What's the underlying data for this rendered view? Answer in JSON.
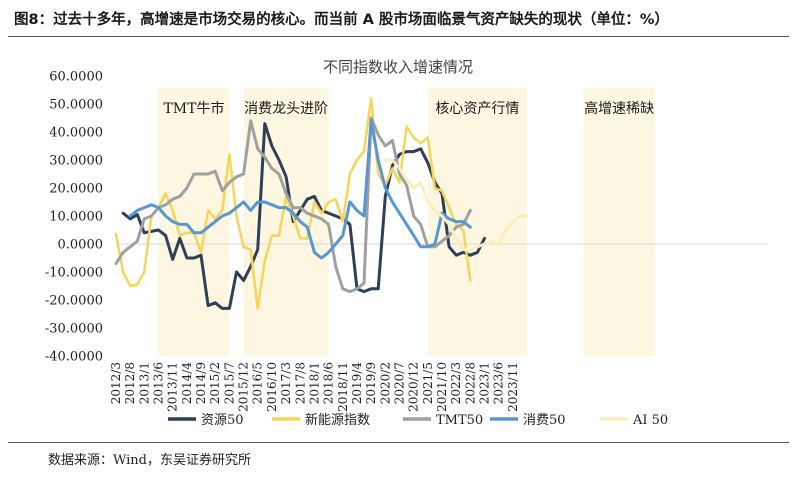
{
  "figure_title": "图8：过去十多年，高增速是市场交易的核心。而当前 A 股市场面临景气资产缺失的现状（单位：%）",
  "source": "数据来源：Wind，东吴证券研究所",
  "chart_data": {
    "type": "line",
    "title": "不同指数收入增速情况",
    "xlabel": "",
    "ylabel": "",
    "ylim": [
      -40,
      60
    ],
    "yticks": [
      60,
      50,
      40,
      30,
      20,
      10,
      0,
      -10,
      -20,
      -30,
      -40
    ],
    "ytick_labels": [
      "60.0000",
      "50.0000",
      "40.0000",
      "30.0000",
      "20.0000",
      "10.0000",
      "0.0000",
      "-10.0000",
      "-20.0000",
      "-30.0000",
      "-40.0000"
    ],
    "x_range": [
      0,
      46
    ],
    "xticks": [
      {
        "label": "2012/3",
        "x": 0
      },
      {
        "label": "2012/8",
        "x": 1
      },
      {
        "label": "2013/1",
        "x": 2
      },
      {
        "label": "2013/6",
        "x": 3
      },
      {
        "label": "2013/11",
        "x": 4
      },
      {
        "label": "2014/4",
        "x": 5
      },
      {
        "label": "2014/9",
        "x": 6
      },
      {
        "label": "2015/2",
        "x": 7
      },
      {
        "label": "2015/7",
        "x": 8
      },
      {
        "label": "2015/12",
        "x": 9
      },
      {
        "label": "2016/5",
        "x": 10
      },
      {
        "label": "2016/10",
        "x": 11
      },
      {
        "label": "2017/3",
        "x": 12
      },
      {
        "label": "2017/8",
        "x": 13
      },
      {
        "label": "2018/1",
        "x": 14
      },
      {
        "label": "2018/6",
        "x": 15
      },
      {
        "label": "2018/11",
        "x": 16
      },
      {
        "label": "2019/4",
        "x": 17
      },
      {
        "label": "2019/9",
        "x": 18
      },
      {
        "label": "2020/2",
        "x": 19
      },
      {
        "label": "2020/7",
        "x": 20
      },
      {
        "label": "2020/12",
        "x": 21
      },
      {
        "label": "2021/5",
        "x": 22
      },
      {
        "label": "2021/10",
        "x": 23
      },
      {
        "label": "2022/3",
        "x": 24
      },
      {
        "label": "2022/8",
        "x": 25
      },
      {
        "label": "2023/1",
        "x": 26
      },
      {
        "label": "2023/6",
        "x": 27
      },
      {
        "label": "2023/11",
        "x": 28
      }
    ],
    "grid": false,
    "legend_position": "bottom",
    "regions": [
      {
        "label": "TMT牛市",
        "x0": 3,
        "x1": 8
      },
      {
        "label": "消费龙头进阶",
        "x0": 9,
        "x1": 15
      },
      {
        "label": "核心资产行情",
        "x0": 22,
        "x1": 29
      },
      {
        "label": "高增速稀缺",
        "x0": 33,
        "x1": 38
      }
    ],
    "series": [
      {
        "name": "资源50",
        "color": "#2f3f57",
        "width": 3,
        "points": [
          [
            0.5,
            11
          ],
          [
            1,
            9
          ],
          [
            1.5,
            10.5
          ],
          [
            2,
            4
          ],
          [
            2.5,
            4.5
          ],
          [
            3,
            5
          ],
          [
            3.5,
            3
          ],
          [
            4,
            -5.5
          ],
          [
            4.5,
            2
          ],
          [
            5,
            -5
          ],
          [
            5.5,
            -5
          ],
          [
            6,
            -4
          ],
          [
            6.5,
            -22
          ],
          [
            7,
            -21
          ],
          [
            7.5,
            -23
          ],
          [
            8,
            -23
          ],
          [
            8.5,
            -10
          ],
          [
            9,
            -13
          ],
          [
            9.5,
            -8
          ],
          [
            10,
            -2
          ],
          [
            10.5,
            43
          ],
          [
            11,
            35
          ],
          [
            11.5,
            30
          ],
          [
            12,
            24
          ],
          [
            12.5,
            8
          ],
          [
            13,
            12
          ],
          [
            13.5,
            16
          ],
          [
            14,
            17
          ],
          [
            14.5,
            12
          ],
          [
            15,
            11
          ],
          [
            15.5,
            10
          ],
          [
            16,
            9
          ],
          [
            16.5,
            7
          ],
          [
            17,
            -16
          ],
          [
            17.5,
            -17
          ],
          [
            18,
            -16
          ],
          [
            18.5,
            -16
          ],
          [
            19,
            17
          ],
          [
            19.5,
            28
          ],
          [
            20,
            32
          ],
          [
            20.5,
            33
          ],
          [
            21,
            33
          ],
          [
            21.5,
            34
          ],
          [
            22,
            29
          ],
          [
            22.5,
            22
          ],
          [
            23,
            18
          ],
          [
            23.5,
            -1
          ],
          [
            24,
            -4
          ],
          [
            24.5,
            -3
          ],
          [
            25,
            -4
          ],
          [
            25.5,
            -3
          ],
          [
            26,
            2
          ]
        ]
      },
      {
        "name": "新能源指数",
        "color": "#f5d55a",
        "width": 2.5,
        "points": [
          [
            0,
            3.5
          ],
          [
            0.5,
            -10
          ],
          [
            1,
            -15
          ],
          [
            1.5,
            -14.5
          ],
          [
            2,
            -10
          ],
          [
            2.5,
            10
          ],
          [
            3,
            13
          ],
          [
            3.5,
            18
          ],
          [
            4,
            12
          ],
          [
            4.5,
            3
          ],
          [
            5,
            4
          ],
          [
            5.5,
            4
          ],
          [
            6,
            -3
          ],
          [
            6.5,
            12
          ],
          [
            7,
            9
          ],
          [
            7.5,
            12
          ],
          [
            8,
            32
          ],
          [
            8.5,
            10
          ],
          [
            9,
            -1
          ],
          [
            9.5,
            -2
          ],
          [
            10,
            -23
          ],
          [
            10.5,
            -6
          ],
          [
            11,
            3
          ],
          [
            11.5,
            3
          ],
          [
            12,
            17
          ],
          [
            12.5,
            10
          ],
          [
            13,
            2
          ],
          [
            13.5,
            2
          ],
          [
            14,
            15
          ],
          [
            14.5,
            11
          ],
          [
            15,
            15
          ],
          [
            15.5,
            16
          ],
          [
            16,
            8
          ],
          [
            16.5,
            25
          ],
          [
            17,
            30
          ],
          [
            17.5,
            33
          ],
          [
            18,
            52
          ],
          [
            18.5,
            25
          ],
          [
            19,
            21
          ],
          [
            19.5,
            27
          ],
          [
            20,
            22
          ],
          [
            20.5,
            42
          ],
          [
            21,
            38
          ],
          [
            21.5,
            36
          ],
          [
            22,
            38
          ],
          [
            22.5,
            20
          ],
          [
            23,
            19
          ],
          [
            23.5,
            13
          ],
          [
            24,
            7
          ],
          [
            24.5,
            5
          ],
          [
            25,
            -13
          ]
        ]
      },
      {
        "name": "TMT50",
        "color": "#9fa0a0",
        "width": 3,
        "points": [
          [
            0,
            -7
          ],
          [
            0.5,
            -3
          ],
          [
            1,
            -1
          ],
          [
            1.5,
            1
          ],
          [
            2,
            9
          ],
          [
            2.5,
            10
          ],
          [
            3,
            13
          ],
          [
            3.5,
            14
          ],
          [
            4,
            16
          ],
          [
            4.5,
            17
          ],
          [
            5,
            20
          ],
          [
            5.5,
            25
          ],
          [
            6,
            25
          ],
          [
            6.5,
            25
          ],
          [
            7,
            26
          ],
          [
            7.5,
            19
          ],
          [
            8,
            22
          ],
          [
            8.5,
            24
          ],
          [
            9,
            25
          ],
          [
            9.5,
            44
          ],
          [
            10,
            34
          ],
          [
            10.5,
            31
          ],
          [
            11,
            27
          ],
          [
            11.5,
            25
          ],
          [
            12,
            18
          ],
          [
            12.5,
            13
          ],
          [
            13,
            13
          ],
          [
            13.5,
            11
          ],
          [
            14,
            10
          ],
          [
            14.5,
            9
          ],
          [
            15,
            7
          ],
          [
            15.5,
            -8
          ],
          [
            16,
            -16
          ],
          [
            16.5,
            -17
          ],
          [
            17,
            -16
          ],
          [
            17.5,
            -14
          ],
          [
            18,
            45
          ],
          [
            18.5,
            39
          ],
          [
            19,
            35
          ],
          [
            19.5,
            37
          ],
          [
            20,
            25
          ],
          [
            20.5,
            21
          ],
          [
            21,
            10
          ],
          [
            21.5,
            7
          ],
          [
            22,
            -1
          ],
          [
            22.5,
            -1
          ],
          [
            23,
            1
          ],
          [
            23.5,
            3
          ],
          [
            24,
            6
          ],
          [
            24.5,
            7
          ],
          [
            25,
            12
          ]
        ]
      },
      {
        "name": "消费50",
        "color": "#5a96d2",
        "width": 3,
        "points": [
          [
            1,
            10
          ],
          [
            1.5,
            12
          ],
          [
            2,
            13
          ],
          [
            2.5,
            14
          ],
          [
            3,
            13
          ],
          [
            3.5,
            10
          ],
          [
            4,
            8
          ],
          [
            4.5,
            7
          ],
          [
            5,
            7
          ],
          [
            5.5,
            4
          ],
          [
            6,
            4
          ],
          [
            6.5,
            6
          ],
          [
            7,
            8
          ],
          [
            7.5,
            10
          ],
          [
            8,
            11
          ],
          [
            8.5,
            13
          ],
          [
            9,
            15
          ],
          [
            9.5,
            12
          ],
          [
            10,
            15
          ],
          [
            10.5,
            15
          ],
          [
            11,
            14
          ],
          [
            11.5,
            13
          ],
          [
            12,
            13
          ],
          [
            12.5,
            11
          ],
          [
            13,
            8
          ],
          [
            13.5,
            6
          ],
          [
            14,
            -3
          ],
          [
            14.5,
            -5
          ],
          [
            15,
            -3
          ],
          [
            15.5,
            0
          ],
          [
            16,
            3
          ],
          [
            16.5,
            15
          ],
          [
            17,
            12
          ],
          [
            17.5,
            10
          ],
          [
            18,
            44
          ],
          [
            18.5,
            30
          ],
          [
            19,
            20
          ],
          [
            19.5,
            15
          ],
          [
            20,
            11
          ],
          [
            20.5,
            7
          ],
          [
            21,
            3
          ],
          [
            21.5,
            -1
          ],
          [
            22,
            -1
          ],
          [
            22.5,
            0
          ],
          [
            23,
            11
          ],
          [
            23.5,
            9
          ],
          [
            24,
            8
          ],
          [
            24.5,
            8
          ],
          [
            25,
            6
          ]
        ]
      },
      {
        "name": "AI 50",
        "color": "#fbeec0",
        "width": 3,
        "points": [
          [
            19,
            30
          ],
          [
            19.5,
            30
          ],
          [
            20,
            27
          ],
          [
            20.5,
            23
          ],
          [
            21,
            20
          ],
          [
            21.5,
            22
          ],
          [
            22,
            15
          ],
          [
            22.5,
            12
          ],
          [
            23,
            10
          ],
          [
            23.5,
            7
          ],
          [
            24,
            2
          ],
          [
            24.5,
            -2
          ],
          [
            25,
            -2
          ],
          [
            25.5,
            -1
          ],
          [
            26,
            0
          ],
          [
            26.5,
            1
          ],
          [
            27,
            0
          ],
          [
            27.5,
            5
          ],
          [
            28,
            8
          ],
          [
            28.5,
            10
          ],
          [
            29,
            10
          ]
        ]
      }
    ]
  }
}
